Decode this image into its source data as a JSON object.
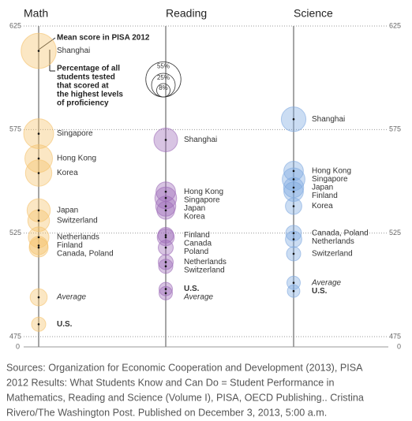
{
  "chart_data": [
    {
      "type": "bubble",
      "title": "Math",
      "color": "#f5c26b",
      "categories": [
        "Shanghai",
        "Singapore",
        "Hong Kong",
        "Korea",
        "Japan",
        "Switzerland",
        "Netherlands",
        "Finland",
        "Canada, Poland",
        "Average",
        "U.S."
      ],
      "values": [
        613,
        573,
        561,
        554,
        536,
        531,
        523,
        519,
        518,
        494,
        481
      ],
      "sizes": [
        55,
        40,
        34,
        31,
        24,
        21,
        19,
        15,
        16,
        13,
        9
      ],
      "styles": [
        "normal",
        "normal",
        "normal",
        "normal",
        "normal",
        "normal",
        "normal",
        "normal",
        "normal",
        "italic",
        "bold"
      ],
      "ylim": [
        475,
        625
      ],
      "yticks": [
        475,
        525,
        575,
        625
      ],
      "axis_floor": 0,
      "legend": {
        "mean_label": "Mean score in PISA 2012",
        "size_label": [
          "Percentage of all",
          "students tested",
          "that scored at",
          "the highest levels",
          "of proficiency"
        ],
        "sizes": [
          {
            "value": 55,
            "label": "55%"
          },
          {
            "value": 25,
            "label": "25%"
          },
          {
            "value": 8,
            "label": "8%"
          }
        ]
      }
    },
    {
      "type": "bubble",
      "title": "Reading",
      "color": "#9d6bb8",
      "categories": [
        "Shanghai",
        "Hong Kong",
        "Singapore",
        "Japan",
        "Korea",
        "Finland",
        "Canada",
        "Poland",
        "Netherlands",
        "Switzerland",
        "U.S.",
        "Average"
      ],
      "values": [
        570,
        545,
        542,
        538,
        536,
        524,
        523,
        518,
        511,
        509,
        498,
        496
      ],
      "sizes": [
        25,
        17,
        21,
        18,
        14,
        11,
        13,
        10,
        10,
        9,
        8,
        8
      ],
      "styles": [
        "normal",
        "normal",
        "normal",
        "normal",
        "normal",
        "normal",
        "normal",
        "normal",
        "normal",
        "normal",
        "bold",
        "italic"
      ],
      "ylim": [
        475,
        625
      ],
      "yticks": [
        475,
        525,
        575,
        625
      ]
    },
    {
      "type": "bubble",
      "title": "Science",
      "color": "#7ea9e0",
      "categories": [
        "Shanghai",
        "Hong Kong",
        "Singapore",
        "Japan",
        "Finland",
        "Korea",
        "Canada, Poland",
        "Netherlands",
        "Switzerland",
        "Average",
        "U.S."
      ],
      "values": [
        580,
        555,
        551,
        547,
        545,
        538,
        525,
        522,
        515,
        501,
        497
      ],
      "sizes": [
        27,
        17,
        23,
        18,
        17,
        12,
        11,
        12,
        9,
        8,
        7
      ],
      "styles": [
        "normal",
        "normal",
        "normal",
        "normal",
        "normal",
        "normal",
        "normal",
        "normal",
        "normal",
        "italic",
        "bold"
      ],
      "ylim": [
        475,
        625
      ],
      "yticks": [
        475,
        525,
        575,
        625
      ],
      "axis_floor": 0
    }
  ],
  "source": [
    "Sources: Organization for Economic Cooperation and Development (2013), PISA",
    "2012 Results: What Students Know and Can Do = Student Performance in",
    "Mathematics, Reading and Science (Volume I), PISA, OECD Publishing.. Cristina",
    "Rivero/The Washington Post. Published on December 3, 2013, 5:00 a.m."
  ]
}
